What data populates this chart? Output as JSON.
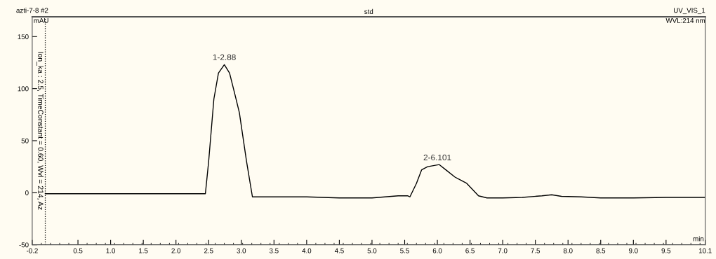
{
  "chart_data": {
    "type": "line",
    "title": "std",
    "subtitle": "azti-7-8 #2",
    "xlabel": "min",
    "ylabel": "mAU",
    "annotations": [
      "UV_VIS_1",
      "WVL:214 nm",
      "Ion_ka : 2.5, TimeConstant = 0.60, Wvl = 214, Az",
      {
        "text": "1-2.88",
        "x": 2.74,
        "y": 123
      },
      {
        "text": "2-6.101",
        "x": 6.0,
        "y": 26.7
      }
    ],
    "series": [
      {
        "color": "#000000",
        "x": [
          0.0,
          1.0,
          2.0,
          2.45,
          2.5,
          2.58,
          2.65,
          2.74,
          2.82,
          2.9,
          2.97,
          3.08,
          3.17,
          3.3,
          4.0,
          4.5,
          5.0,
          5.2,
          5.4,
          5.55,
          5.58,
          5.68,
          5.76,
          5.85,
          6.03,
          6.13,
          6.27,
          6.45,
          6.63,
          6.76,
          7.0,
          7.3,
          7.6,
          7.75,
          7.9,
          8.2,
          8.5,
          9.0,
          9.5,
          10.1
        ],
        "values": [
          -1,
          -1,
          -1,
          -1,
          30,
          90,
          115,
          123,
          115,
          95,
          77,
          30,
          -4,
          -4,
          -4,
          -5,
          -5,
          -4,
          -3,
          -3,
          -4,
          9,
          22,
          25,
          27,
          22,
          15,
          9,
          -3,
          -5,
          -5,
          -4.5,
          -3,
          -2,
          -3.5,
          -4,
          -5,
          -5,
          -4.5,
          -4.5
        ]
      }
    ],
    "xlim": [
      -0.2,
      10.1
    ],
    "ylim": [
      -50,
      169
    ],
    "xticks": [
      {
        "value": -0.2,
        "label": "-0.2"
      },
      {
        "value": 0.5,
        "label": "0.5"
      },
      {
        "value": 1.0,
        "label": "1.0"
      },
      {
        "value": 1.5,
        "label": "1.5"
      },
      {
        "value": 2.0,
        "label": "2.0"
      },
      {
        "value": 2.5,
        "label": "2.5"
      },
      {
        "value": 3.0,
        "label": "3.0"
      },
      {
        "value": 3.5,
        "label": "3.5"
      },
      {
        "value": 4.0,
        "label": "4.0"
      },
      {
        "value": 4.5,
        "label": "4.5"
      },
      {
        "value": 5.0,
        "label": "5.0"
      },
      {
        "value": 5.5,
        "label": "5.5"
      },
      {
        "value": 6.0,
        "label": "6.0"
      },
      {
        "value": 6.5,
        "label": "6.5"
      },
      {
        "value": 7.0,
        "label": "7.0"
      },
      {
        "value": 7.5,
        "label": "7.5"
      },
      {
        "value": 8.0,
        "label": "8.0"
      },
      {
        "value": 8.5,
        "label": "8.5"
      },
      {
        "value": 9.0,
        "label": "9.0"
      },
      {
        "value": 9.5,
        "label": "9.5"
      },
      {
        "value": 10.1,
        "label": "10.1"
      }
    ],
    "yticks": [
      -50,
      0,
      50,
      100,
      150
    ],
    "ref_lines": [
      {
        "axis": "x",
        "value": 0,
        "color": "#000000",
        "line_style": "dotted"
      }
    ],
    "grid": false,
    "legend": false,
    "marker": "none",
    "line_style": "solid"
  }
}
